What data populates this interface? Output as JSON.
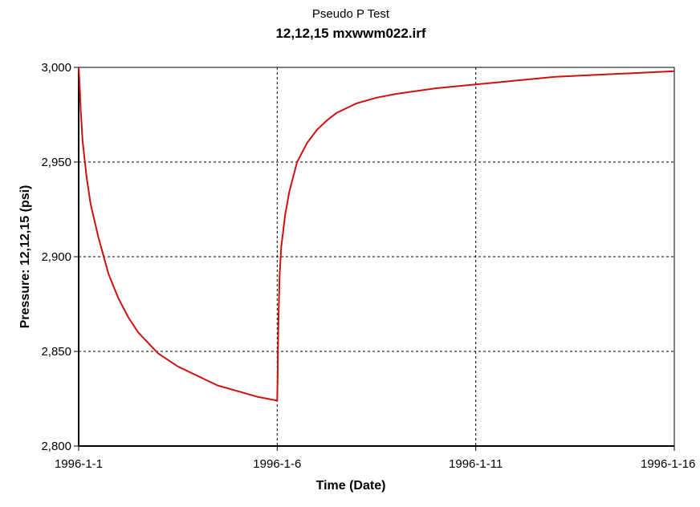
{
  "chart_data": {
    "type": "line",
    "title": "Pseudo P Test",
    "subtitle": "12,12,15 mxwwm022.irf",
    "xlabel": "Time (Date)",
    "ylabel": "Pressure: 12,12,15 (psi)",
    "x_ticks": [
      "1996-1-1",
      "1996-1-6",
      "1996-1-11",
      "1996-1-16"
    ],
    "y_ticks": [
      "2,800",
      "2,850",
      "2,900",
      "2,950",
      "3,000"
    ],
    "xlim": [
      0,
      15
    ],
    "ylim": [
      2800,
      3000
    ],
    "x_unit": "days from 1996-1-1",
    "grid": true,
    "series_color": "#cc1111",
    "series": [
      {
        "name": "",
        "x": [
          0,
          0.02,
          0.05,
          0.1,
          0.2,
          0.3,
          0.5,
          0.75,
          1.0,
          1.25,
          1.5,
          2.0,
          2.5,
          3.0,
          3.5,
          4.0,
          4.5,
          5.0,
          5.01,
          5.03,
          5.06,
          5.1,
          5.2,
          5.3,
          5.5,
          5.75,
          6.0,
          6.25,
          6.5,
          7.0,
          7.5,
          8.0,
          9.0,
          10.0,
          11.0,
          12.0,
          13.0,
          14.0,
          15.0
        ],
        "y": [
          3000,
          2993,
          2978,
          2961,
          2942,
          2928,
          2910,
          2891,
          2878,
          2868,
          2860,
          2849,
          2842,
          2837,
          2832,
          2829,
          2826,
          2824,
          2835,
          2865,
          2890,
          2905,
          2922,
          2934,
          2950,
          2960,
          2967,
          2972,
          2976,
          2981,
          2984,
          2986,
          2989,
          2991,
          2993,
          2995,
          2996,
          2997,
          2998
        ]
      }
    ]
  }
}
